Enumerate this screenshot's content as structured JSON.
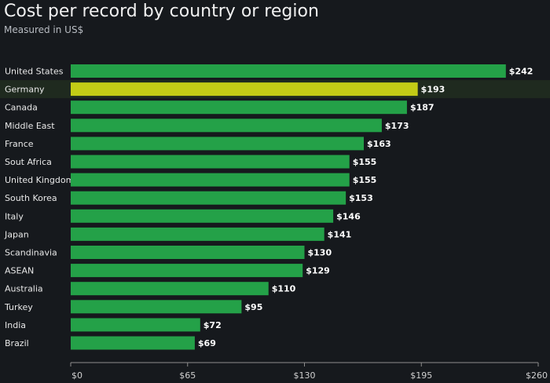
{
  "header": {
    "title": "Cost per record by country or region",
    "subtitle": "Measured in US$"
  },
  "colors": {
    "background": "#16191d",
    "bar": "#24a148",
    "highlight_bar": "#c3cc16",
    "highlight_row": "#1f2a1f",
    "axis": "#8d8d8d"
  },
  "chart_data": {
    "type": "bar",
    "orientation": "horizontal",
    "title": "Cost per record by country or region",
    "subtitle": "Measured in US$",
    "xlabel": "",
    "ylabel": "",
    "categories": [
      "United States",
      "Germany",
      "Canada",
      "Middle East",
      "France",
      "Sout Africa",
      "United Kingdom",
      "South Korea",
      "Italy",
      "Japan",
      "Scandinavia",
      "ASEAN",
      "Australia",
      "Turkey",
      "India",
      "Brazil"
    ],
    "values": [
      242,
      193,
      187,
      173,
      163,
      155,
      155,
      153,
      146,
      141,
      130,
      129,
      110,
      95,
      72,
      69
    ],
    "value_labels": [
      "$242",
      "$193",
      "$187",
      "$173",
      "$163",
      "$155",
      "$155",
      "$153",
      "$146",
      "$141",
      "$130",
      "$129",
      "$110",
      "$95",
      "$72",
      "$69"
    ],
    "highlighted": "Germany",
    "xlim": [
      0,
      260
    ],
    "xticks": [
      0,
      65,
      130,
      195,
      260
    ],
    "xtick_labels": [
      "$0",
      "$65",
      "$130",
      "$195",
      "$260"
    ],
    "grid": false
  }
}
